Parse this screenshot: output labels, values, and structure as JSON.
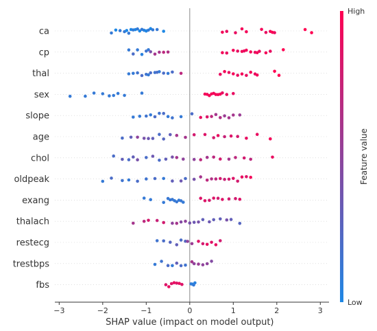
{
  "chart_data": {
    "type": "scatter",
    "subtype": "shap-beeswarm-summary",
    "xlabel": "SHAP value (impact on model output)",
    "xlim": [
      -3.1,
      3.2
    ],
    "xticks": [
      -3,
      -2,
      -1,
      0,
      1,
      2,
      3
    ],
    "zero_line": true,
    "grid": false,
    "colorbar": {
      "title": "Feature value",
      "high_label": "High",
      "low_label": "Low",
      "low_color": "#1e88e5",
      "high_color": "#ff0052"
    },
    "features": [
      {
        "name": "ca",
        "points": [
          [
            -1.8,
            0.1
          ],
          [
            -1.7,
            0.0
          ],
          [
            -1.6,
            0.1
          ],
          [
            -1.5,
            0.1
          ],
          [
            -1.45,
            0.0
          ],
          [
            -1.4,
            0.1
          ],
          [
            -1.35,
            0.0
          ],
          [
            -1.3,
            0.1
          ],
          [
            -1.25,
            0.0
          ],
          [
            -1.2,
            0.1
          ],
          [
            -1.15,
            0.0
          ],
          [
            -1.1,
            0.1
          ],
          [
            -1.05,
            0.05
          ],
          [
            -1.0,
            0.1
          ],
          [
            -1.0,
            0.0
          ],
          [
            -0.95,
            0.1
          ],
          [
            -0.9,
            0.0
          ],
          [
            -0.85,
            0.1
          ],
          [
            -0.75,
            0.1
          ],
          [
            -0.6,
            0.0
          ],
          [
            0.75,
            0.95
          ],
          [
            0.85,
            0.9
          ],
          [
            1.05,
            0.9
          ],
          [
            1.2,
            0.95
          ],
          [
            1.3,
            0.95
          ],
          [
            1.65,
            0.95
          ],
          [
            1.75,
            0.9
          ],
          [
            1.85,
            0.95
          ],
          [
            1.9,
            1.0
          ],
          [
            1.95,
            0.9
          ],
          [
            2.65,
            1.0
          ],
          [
            2.8,
            1.0
          ]
        ]
      },
      {
        "name": "cp",
        "points": [
          [
            -1.4,
            0.1
          ],
          [
            -1.3,
            0.2
          ],
          [
            -1.2,
            0.1
          ],
          [
            -1.1,
            0.05
          ],
          [
            -1.0,
            0.15
          ],
          [
            -0.95,
            0.1
          ],
          [
            -0.9,
            0.4
          ],
          [
            -0.8,
            0.6
          ],
          [
            -0.7,
            0.6
          ],
          [
            -0.6,
            0.7
          ],
          [
            -0.5,
            0.65
          ],
          [
            0.75,
            0.95
          ],
          [
            0.85,
            0.9
          ],
          [
            1.0,
            0.95
          ],
          [
            1.1,
            0.9
          ],
          [
            1.2,
            0.95
          ],
          [
            1.25,
            0.9
          ],
          [
            1.3,
            0.95
          ],
          [
            1.4,
            0.95
          ],
          [
            1.5,
            0.9
          ],
          [
            1.55,
            0.95
          ],
          [
            1.6,
            0.9
          ],
          [
            1.75,
            0.95
          ],
          [
            1.85,
            0.9
          ],
          [
            2.15,
            1.0
          ]
        ]
      },
      {
        "name": "thal",
        "points": [
          [
            -1.4,
            0.1
          ],
          [
            -1.3,
            0.1
          ],
          [
            -1.2,
            0.15
          ],
          [
            -1.1,
            0.2
          ],
          [
            -1.0,
            0.15
          ],
          [
            -0.95,
            0.1
          ],
          [
            -0.9,
            0.2
          ],
          [
            -0.8,
            0.15
          ],
          [
            -0.75,
            0.2
          ],
          [
            -0.7,
            0.1
          ],
          [
            -0.6,
            0.2
          ],
          [
            -0.5,
            0.1
          ],
          [
            -0.4,
            0.2
          ],
          [
            -0.2,
            0.7
          ],
          [
            0.7,
            0.9
          ],
          [
            0.8,
            0.95
          ],
          [
            0.9,
            0.9
          ],
          [
            1.0,
            0.95
          ],
          [
            1.1,
            0.9
          ],
          [
            1.2,
            0.95
          ],
          [
            1.3,
            0.9
          ],
          [
            1.4,
            0.95
          ],
          [
            1.5,
            0.9
          ],
          [
            1.55,
            0.95
          ],
          [
            1.95,
            1.0
          ],
          [
            2.05,
            1.0
          ]
        ]
      },
      {
        "name": "sex",
        "points": [
          [
            -2.75,
            0.1
          ],
          [
            -2.4,
            0.1
          ],
          [
            -2.2,
            0.1
          ],
          [
            -2.0,
            0.1
          ],
          [
            -1.85,
            0.1
          ],
          [
            -1.75,
            0.1
          ],
          [
            -1.65,
            0.1
          ],
          [
            -1.5,
            0.1
          ],
          [
            -1.1,
            0.1
          ],
          [
            0.35,
            0.95
          ],
          [
            0.4,
            0.95
          ],
          [
            0.45,
            0.95
          ],
          [
            0.5,
            0.95
          ],
          [
            0.55,
            0.95
          ],
          [
            0.6,
            0.95
          ],
          [
            0.65,
            0.95
          ],
          [
            0.7,
            0.95
          ],
          [
            0.75,
            0.9
          ],
          [
            0.85,
            0.9
          ],
          [
            1.0,
            0.9
          ]
        ]
      },
      {
        "name": "slope",
        "points": [
          [
            -1.3,
            0.1
          ],
          [
            -1.15,
            0.1
          ],
          [
            -1.0,
            0.15
          ],
          [
            -0.9,
            0.1
          ],
          [
            -0.8,
            0.2
          ],
          [
            -0.7,
            0.15
          ],
          [
            -0.6,
            0.2
          ],
          [
            -0.5,
            0.1
          ],
          [
            -0.4,
            0.15
          ],
          [
            -0.2,
            0.1
          ],
          [
            0.05,
            0.2
          ],
          [
            0.25,
            0.9
          ],
          [
            0.4,
            0.85
          ],
          [
            0.5,
            0.7
          ],
          [
            0.6,
            0.6
          ],
          [
            0.7,
            0.65
          ],
          [
            0.8,
            0.55
          ],
          [
            0.9,
            0.6
          ],
          [
            1.0,
            0.6
          ],
          [
            1.15,
            0.55
          ]
        ]
      },
      {
        "name": "age",
        "points": [
          [
            -1.55,
            0.2
          ],
          [
            -1.35,
            0.3
          ],
          [
            -1.2,
            0.5
          ],
          [
            -1.05,
            0.4
          ],
          [
            -0.95,
            0.35
          ],
          [
            -0.85,
            0.3
          ],
          [
            -0.7,
            0.2
          ],
          [
            -0.6,
            0.25
          ],
          [
            -0.45,
            0.3
          ],
          [
            -0.3,
            0.6
          ],
          [
            -0.1,
            0.6
          ],
          [
            0.1,
            0.8
          ],
          [
            0.35,
            0.85
          ],
          [
            0.55,
            0.8
          ],
          [
            0.65,
            0.9
          ],
          [
            0.8,
            0.75
          ],
          [
            0.95,
            0.85
          ],
          [
            1.1,
            0.8
          ],
          [
            1.3,
            0.9
          ],
          [
            1.55,
            0.9
          ],
          [
            1.85,
            0.95
          ]
        ]
      },
      {
        "name": "chol",
        "points": [
          [
            -1.75,
            0.2
          ],
          [
            -1.55,
            0.3
          ],
          [
            -1.4,
            0.2
          ],
          [
            -1.3,
            0.3
          ],
          [
            -1.2,
            0.4
          ],
          [
            -1.0,
            0.2
          ],
          [
            -0.85,
            0.35
          ],
          [
            -0.7,
            0.2
          ],
          [
            -0.55,
            0.3
          ],
          [
            -0.4,
            0.4
          ],
          [
            -0.3,
            0.6
          ],
          [
            -0.15,
            0.5
          ],
          [
            0.1,
            0.5
          ],
          [
            0.25,
            0.7
          ],
          [
            0.4,
            0.6
          ],
          [
            0.55,
            0.7
          ],
          [
            0.7,
            0.8
          ],
          [
            0.9,
            0.6
          ],
          [
            1.05,
            0.7
          ],
          [
            1.25,
            0.8
          ],
          [
            1.4,
            0.7
          ],
          [
            1.9,
            0.9
          ]
        ]
      },
      {
        "name": "oldpeak",
        "points": [
          [
            -2.0,
            0.1
          ],
          [
            -1.8,
            0.2
          ],
          [
            -1.55,
            0.15
          ],
          [
            -1.4,
            0.1
          ],
          [
            -1.2,
            0.2
          ],
          [
            -1.0,
            0.15
          ],
          [
            -0.8,
            0.2
          ],
          [
            -0.6,
            0.1
          ],
          [
            -0.4,
            0.3
          ],
          [
            -0.2,
            0.35
          ],
          [
            -0.1,
            0.2
          ],
          [
            0.1,
            0.4
          ],
          [
            0.25,
            0.6
          ],
          [
            0.4,
            0.7
          ],
          [
            0.5,
            0.65
          ],
          [
            0.6,
            0.7
          ],
          [
            0.7,
            0.8
          ],
          [
            0.8,
            0.75
          ],
          [
            0.9,
            0.8
          ],
          [
            1.0,
            0.85
          ],
          [
            1.1,
            0.8
          ],
          [
            1.2,
            0.9
          ],
          [
            1.3,
            0.85
          ],
          [
            1.4,
            0.95
          ]
        ]
      },
      {
        "name": "exang",
        "points": [
          [
            -1.05,
            0.1
          ],
          [
            -0.9,
            0.1
          ],
          [
            -0.6,
            0.1
          ],
          [
            -0.5,
            0.12
          ],
          [
            -0.45,
            0.1
          ],
          [
            -0.4,
            0.12
          ],
          [
            -0.35,
            0.1
          ],
          [
            -0.3,
            0.12
          ],
          [
            -0.25,
            0.1
          ],
          [
            -0.2,
            0.12
          ],
          [
            -0.15,
            0.1
          ],
          [
            0.25,
            0.85
          ],
          [
            0.35,
            0.85
          ],
          [
            0.45,
            0.8
          ],
          [
            0.55,
            0.85
          ],
          [
            0.65,
            0.8
          ],
          [
            0.75,
            0.85
          ],
          [
            0.9,
            0.8
          ],
          [
            1.05,
            0.8
          ],
          [
            1.15,
            0.85
          ]
        ]
      },
      {
        "name": "thalach",
        "points": [
          [
            -1.3,
            0.6
          ],
          [
            -1.05,
            0.7
          ],
          [
            -0.95,
            0.8
          ],
          [
            -0.75,
            0.75
          ],
          [
            -0.6,
            0.8
          ],
          [
            -0.4,
            0.5
          ],
          [
            -0.3,
            0.6
          ],
          [
            -0.2,
            0.45
          ],
          [
            -0.1,
            0.5
          ],
          [
            0.0,
            0.4
          ],
          [
            0.1,
            0.35
          ],
          [
            0.2,
            0.4
          ],
          [
            0.3,
            0.3
          ],
          [
            0.45,
            0.35
          ],
          [
            0.55,
            0.3
          ],
          [
            0.7,
            0.3
          ],
          [
            0.85,
            0.4
          ],
          [
            0.95,
            0.3
          ],
          [
            1.15,
            0.25
          ]
        ]
      },
      {
        "name": "restecg",
        "points": [
          [
            -0.75,
            0.15
          ],
          [
            -0.6,
            0.2
          ],
          [
            -0.45,
            0.25
          ],
          [
            -0.3,
            0.3
          ],
          [
            -0.2,
            0.2
          ],
          [
            -0.1,
            0.25
          ],
          [
            -0.05,
            0.5
          ],
          [
            0.05,
            0.55
          ],
          [
            0.2,
            0.85
          ],
          [
            0.3,
            0.8
          ],
          [
            0.4,
            0.9
          ],
          [
            0.5,
            0.85
          ],
          [
            0.6,
            0.9
          ],
          [
            0.7,
            0.8
          ]
        ]
      },
      {
        "name": "trestbps",
        "points": [
          [
            -0.8,
            0.1
          ],
          [
            -0.65,
            0.15
          ],
          [
            -0.5,
            0.2
          ],
          [
            -0.4,
            0.1
          ],
          [
            -0.3,
            0.3
          ],
          [
            -0.2,
            0.2
          ],
          [
            -0.1,
            0.15
          ],
          [
            0.05,
            0.6
          ],
          [
            0.1,
            0.5
          ],
          [
            0.2,
            0.55
          ],
          [
            0.3,
            0.5
          ],
          [
            0.4,
            0.5
          ],
          [
            0.5,
            0.45
          ]
        ]
      },
      {
        "name": "fbs",
        "points": [
          [
            -0.55,
            0.85
          ],
          [
            -0.48,
            0.9
          ],
          [
            -0.42,
            0.85
          ],
          [
            -0.36,
            0.9
          ],
          [
            -0.3,
            0.85
          ],
          [
            -0.24,
            0.9
          ],
          [
            -0.18,
            0.85
          ],
          [
            0.03,
            0.1
          ],
          [
            0.06,
            0.05
          ],
          [
            0.09,
            0.1
          ],
          [
            0.12,
            0.05
          ]
        ]
      }
    ]
  }
}
